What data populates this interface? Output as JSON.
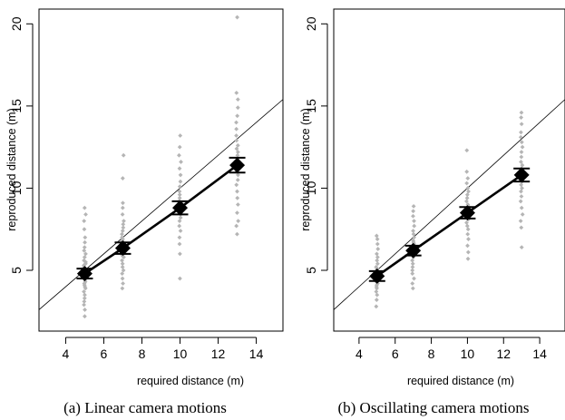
{
  "chart_data": [
    {
      "type": "scatter",
      "caption": "(a) Linear camera motions",
      "xlabel": "required distance (m)",
      "ylabel": "reproduced distance (m)",
      "xlim": [
        2.6,
        15.4
      ],
      "ylim": [
        1.3,
        20.9
      ],
      "xticks": [
        4,
        6,
        8,
        10,
        12,
        14
      ],
      "yticks": [
        5,
        10,
        15,
        20
      ],
      "reference_line": "y = x",
      "scatter_color": "#b5b5b5",
      "groups": [
        {
          "x": 5,
          "min": 2.2,
          "max": 8.8,
          "ys": [
            2.2,
            2.6,
            2.9,
            3.1,
            3.3,
            3.5,
            3.7,
            3.9,
            4.0,
            4.1,
            4.2,
            4.3,
            4.4,
            4.5,
            4.6,
            4.7,
            4.8,
            4.9,
            5.0,
            5.1,
            5.2,
            5.3,
            5.4,
            5.5,
            5.6,
            5.8,
            6.0,
            6.2,
            6.4,
            6.7,
            7.0,
            7.5,
            8.0,
            8.4,
            8.8
          ]
        },
        {
          "x": 7,
          "min": 3.9,
          "max": 12.0,
          "ys": [
            3.9,
            4.2,
            4.5,
            4.8,
            5.0,
            5.2,
            5.4,
            5.6,
            5.8,
            5.9,
            6.0,
            6.1,
            6.2,
            6.3,
            6.4,
            6.5,
            6.6,
            6.7,
            6.8,
            6.9,
            7.0,
            7.2,
            7.4,
            7.6,
            7.8,
            8.0,
            8.4,
            8.8,
            9.1,
            10.6,
            12.0
          ]
        },
        {
          "x": 10,
          "min": 4.5,
          "max": 13.2,
          "ys": [
            4.5,
            6.0,
            6.6,
            7.0,
            7.4,
            7.7,
            8.0,
            8.2,
            8.4,
            8.5,
            8.6,
            8.7,
            8.8,
            8.9,
            9.0,
            9.2,
            9.4,
            9.6,
            9.8,
            10.1,
            10.4,
            10.8,
            11.2,
            11.6,
            12.0,
            12.5,
            13.2
          ]
        },
        {
          "x": 13,
          "min": 7.2,
          "max": 20.4,
          "ys": [
            7.2,
            7.7,
            8.0,
            8.5,
            9.0,
            9.4,
            9.8,
            10.2,
            10.5,
            10.8,
            11.0,
            11.2,
            11.4,
            11.6,
            11.8,
            12.0,
            12.2,
            12.4,
            12.6,
            12.9,
            13.2,
            13.6,
            14.0,
            14.4,
            14.9,
            15.4,
            15.8,
            20.4
          ]
        }
      ],
      "means": [
        {
          "x": 5,
          "y": 4.8,
          "lo": 4.5,
          "hi": 5.1
        },
        {
          "x": 7,
          "y": 6.35,
          "lo": 6.0,
          "hi": 6.7
        },
        {
          "x": 10,
          "y": 8.8,
          "lo": 8.4,
          "hi": 9.2
        },
        {
          "x": 13,
          "y": 11.4,
          "lo": 10.95,
          "hi": 11.85
        }
      ]
    },
    {
      "type": "scatter",
      "caption": "(b) Oscillating camera motions",
      "xlabel": "required distance (m)",
      "ylabel": "reproduced distance (m)",
      "xlim": [
        2.6,
        15.4
      ],
      "ylim": [
        1.3,
        20.9
      ],
      "xticks": [
        4,
        6,
        8,
        10,
        12,
        14
      ],
      "yticks": [
        5,
        10,
        15,
        20
      ],
      "reference_line": "y = x",
      "scatter_color": "#b5b5b5",
      "groups": [
        {
          "x": 5,
          "min": 2.8,
          "max": 7.1,
          "ys": [
            2.8,
            3.2,
            3.5,
            3.7,
            3.9,
            4.0,
            4.1,
            4.2,
            4.3,
            4.4,
            4.5,
            4.6,
            4.7,
            4.8,
            4.9,
            5.0,
            5.1,
            5.2,
            5.4,
            5.6,
            5.8,
            6.0,
            6.3,
            6.6,
            6.9,
            7.1
          ]
        },
        {
          "x": 7,
          "min": 3.9,
          "max": 8.9,
          "ys": [
            3.9,
            4.2,
            4.5,
            4.8,
            5.0,
            5.2,
            5.4,
            5.6,
            5.8,
            5.9,
            6.0,
            6.1,
            6.2,
            6.3,
            6.4,
            6.5,
            6.6,
            6.7,
            6.8,
            7.0,
            7.2,
            7.4,
            7.7,
            8.0,
            8.3,
            8.6,
            8.9
          ]
        },
        {
          "x": 10,
          "min": 5.7,
          "max": 12.3,
          "ys": [
            5.7,
            6.1,
            6.5,
            6.9,
            7.2,
            7.5,
            7.7,
            7.9,
            8.1,
            8.2,
            8.3,
            8.4,
            8.5,
            8.6,
            8.7,
            8.8,
            8.9,
            9.0,
            9.2,
            9.4,
            9.6,
            9.8,
            10.0,
            10.3,
            10.6,
            11.0,
            12.3
          ]
        },
        {
          "x": 13,
          "min": 6.4,
          "max": 14.6,
          "ys": [
            6.4,
            7.6,
            8.0,
            8.4,
            8.8,
            9.2,
            9.5,
            9.8,
            10.0,
            10.2,
            10.4,
            10.6,
            10.8,
            11.0,
            11.2,
            11.4,
            11.6,
            11.9,
            12.2,
            12.5,
            12.8,
            13.1,
            13.4,
            13.9,
            14.3,
            14.6
          ]
        }
      ],
      "means": [
        {
          "x": 5,
          "y": 4.65,
          "lo": 4.35,
          "hi": 4.95
        },
        {
          "x": 7,
          "y": 6.2,
          "lo": 5.9,
          "hi": 6.5
        },
        {
          "x": 10,
          "y": 8.5,
          "lo": 8.15,
          "hi": 8.85
        },
        {
          "x": 13,
          "y": 10.8,
          "lo": 10.4,
          "hi": 11.2
        }
      ]
    }
  ]
}
